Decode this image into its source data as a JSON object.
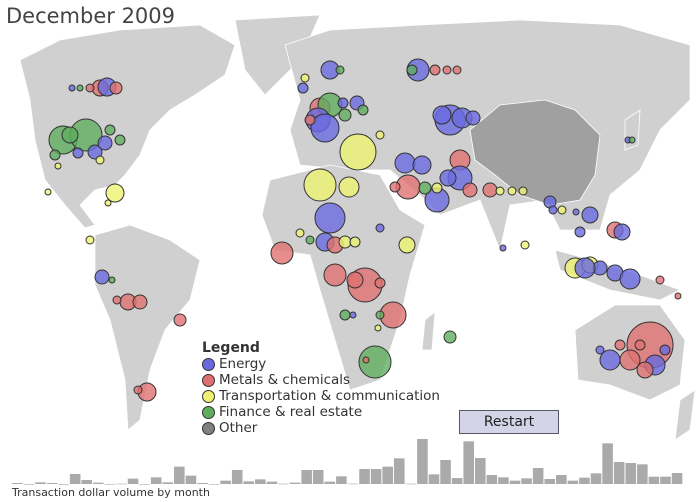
{
  "title": "December 2009",
  "legend": {
    "heading": "Legend",
    "items": [
      {
        "label": "Energy",
        "color": "#6a6ae0"
      },
      {
        "label": "Metals & chemicals",
        "color": "#e07070"
      },
      {
        "label": "Transportation & communication",
        "color": "#eef270"
      },
      {
        "label": "Finance & real estate",
        "color": "#5fae5f"
      },
      {
        "label": "Other",
        "color": "#808080"
      }
    ]
  },
  "restart_label": "Restart",
  "chart_data": {
    "type": "bar",
    "title": "Transaction dollar volume by month",
    "values": [
      3,
      0,
      5,
      3,
      0,
      30,
      12,
      4,
      0,
      1,
      16,
      0,
      20,
      5,
      52,
      25,
      3,
      0,
      10,
      42,
      8,
      14,
      7,
      1,
      4,
      42,
      42,
      7,
      23,
      1,
      45,
      45,
      52,
      77,
      1,
      135,
      29,
      72,
      18,
      128,
      78,
      27,
      20,
      10,
      17,
      48,
      15,
      27,
      10,
      19,
      32,
      122,
      66,
      63,
      59,
      22,
      22,
      33
    ],
    "xlabel": "",
    "ylabel": ""
  }
}
